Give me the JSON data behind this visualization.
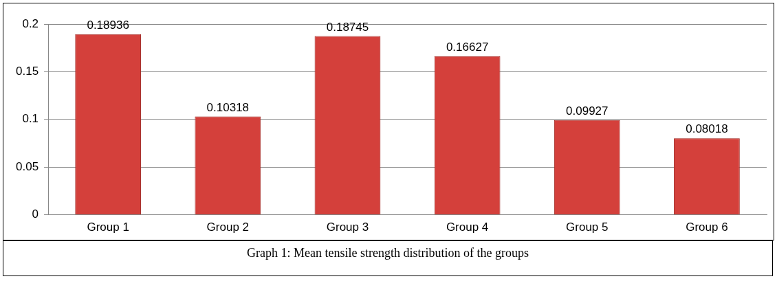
{
  "chart_data": {
    "type": "bar",
    "categories": [
      "Group 1",
      "Group 2",
      "Group 3",
      "Group 4",
      "Group 5",
      "Group 6"
    ],
    "values": [
      0.18936,
      0.10318,
      0.18745,
      0.16627,
      0.09927,
      0.08018
    ],
    "color": "#d4403b",
    "ylim": [
      0,
      0.2
    ],
    "yticks": [
      0,
      0.05,
      0.1,
      0.15,
      0.2
    ],
    "grid": "y",
    "legend": false,
    "data_labels": true,
    "annotations": [
      "Graph 1: Mean tensile strength distribution of the groups"
    ]
  }
}
